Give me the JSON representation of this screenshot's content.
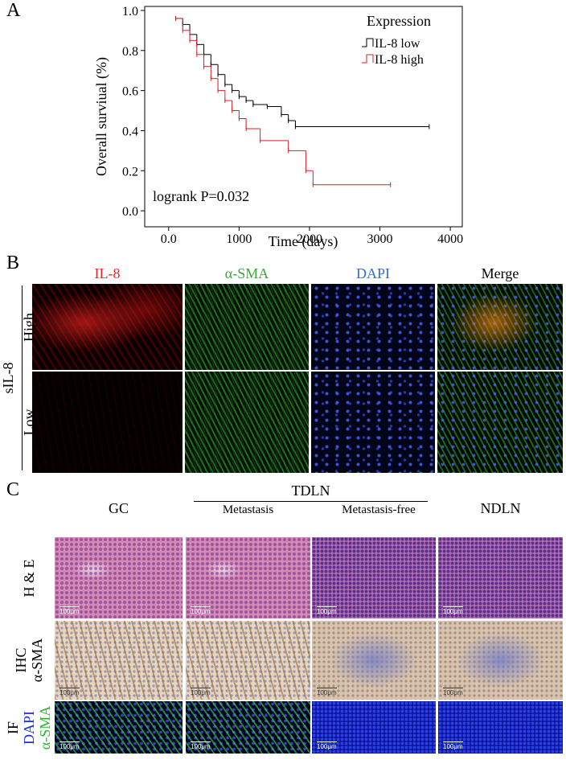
{
  "panel_labels": [
    "A",
    "B",
    "C"
  ],
  "chart_data": {
    "type": "step",
    "xlabel": "Time (days)",
    "ylabel": "Overall surviual (%)",
    "annotation": "logrank P=0.032",
    "legend_title": "Expression",
    "legend_position": "top-right",
    "xlim": [
      -340,
      4170
    ],
    "ylim": [
      -0.08,
      1.02
    ],
    "xticks": [
      {
        "value": 0,
        "label": "0.0"
      },
      1000,
      2000,
      3000,
      4000
    ],
    "yticks": [
      {
        "value": 0,
        "label": "0.0"
      },
      0.2,
      0.4,
      0.6,
      0.8,
      {
        "value": 1,
        "label": "1.0"
      }
    ],
    "series": [
      {
        "name": "IL-8 low",
        "color": "#000000",
        "x": [
          100,
          200,
          300,
          400,
          500,
          600,
          700,
          800,
          900,
          1000,
          1100,
          1200,
          1400,
          1600,
          1700,
          1800,
          3700
        ],
        "values": [
          0.96,
          0.93,
          0.88,
          0.83,
          0.78,
          0.73,
          0.68,
          0.63,
          0.6,
          0.57,
          0.55,
          0.53,
          0.52,
          0.48,
          0.45,
          0.42,
          0.42
        ]
      },
      {
        "name": "IL-8 high",
        "color": "#d0202a",
        "x": [
          100,
          200,
          300,
          400,
          500,
          600,
          700,
          800,
          900,
          1000,
          1100,
          1300,
          1700,
          1950,
          2050,
          3150
        ],
        "values": [
          0.96,
          0.9,
          0.85,
          0.78,
          0.72,
          0.66,
          0.6,
          0.55,
          0.5,
          0.46,
          0.41,
          0.35,
          0.3,
          0.2,
          0.13,
          0.13
        ]
      }
    ]
  },
  "panel_b": {
    "columns": [
      "IL-8",
      "α-SMA",
      "DAPI",
      "Merge"
    ],
    "group": "sIL-8",
    "rows": [
      "High",
      "Low"
    ]
  },
  "panel_c": {
    "columns": [
      "GC",
      "TDLN",
      "NDLN"
    ],
    "subcolumns": [
      "Metastasis",
      "Metastasis-free"
    ],
    "rows": [
      [
        "H & E"
      ],
      [
        "IHC",
        "α-SMA"
      ],
      [
        "IF",
        "DAPI",
        "α-SMA"
      ]
    ],
    "scale_bar": "100μm"
  }
}
